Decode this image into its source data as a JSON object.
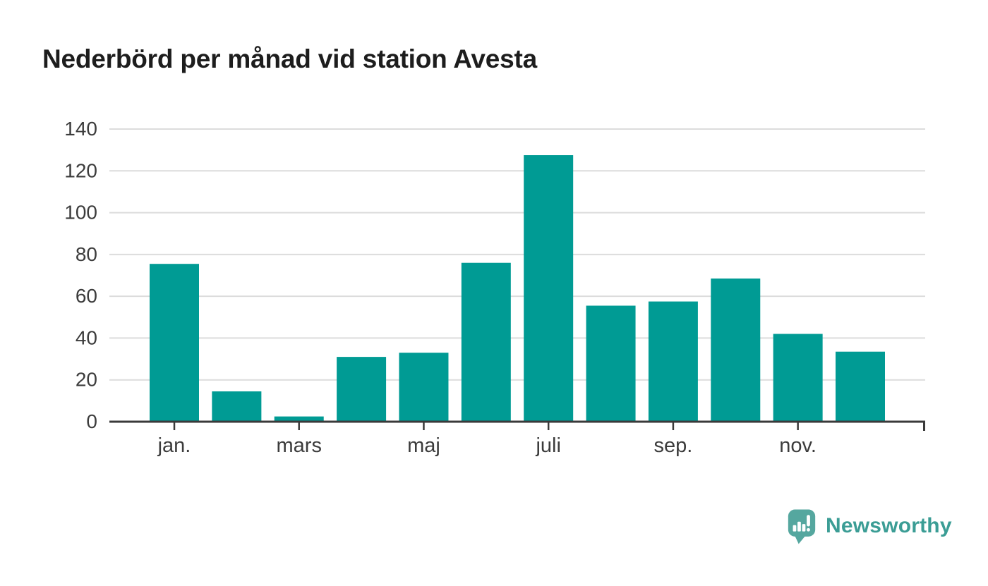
{
  "chart_data": {
    "type": "bar",
    "title": "Nederbörd per månad vid station Avesta",
    "n_bars": 12,
    "values": [
      75.5,
      14.5,
      2.5,
      31,
      33,
      76,
      127.5,
      55.5,
      57.5,
      68.5,
      42,
      33.5
    ],
    "x_tick_labels": [
      "jan.",
      "mars",
      "maj",
      "juli",
      "sep.",
      "nov."
    ],
    "labeled_bar_indices": [
      0,
      2,
      4,
      6,
      8,
      10
    ],
    "y_ticks": [
      0,
      20,
      40,
      60,
      80,
      100,
      120,
      140
    ],
    "ylim": [
      0,
      140
    ],
    "xlabel": "",
    "ylabel": "",
    "legend": "none",
    "grid": "horizontal",
    "colors": {
      "bar": "#009b94",
      "grid": "#dcdcdc",
      "axis": "#3a3a3a",
      "tick_text": "#3c3c3c",
      "title_text": "#1d1d1d"
    }
  },
  "footer": {
    "brand": "Newsworthy",
    "brand_text_color": "#3b9d95",
    "logo_bubble_color": "#55a79f",
    "logo_marks_color": "#ffffff"
  }
}
